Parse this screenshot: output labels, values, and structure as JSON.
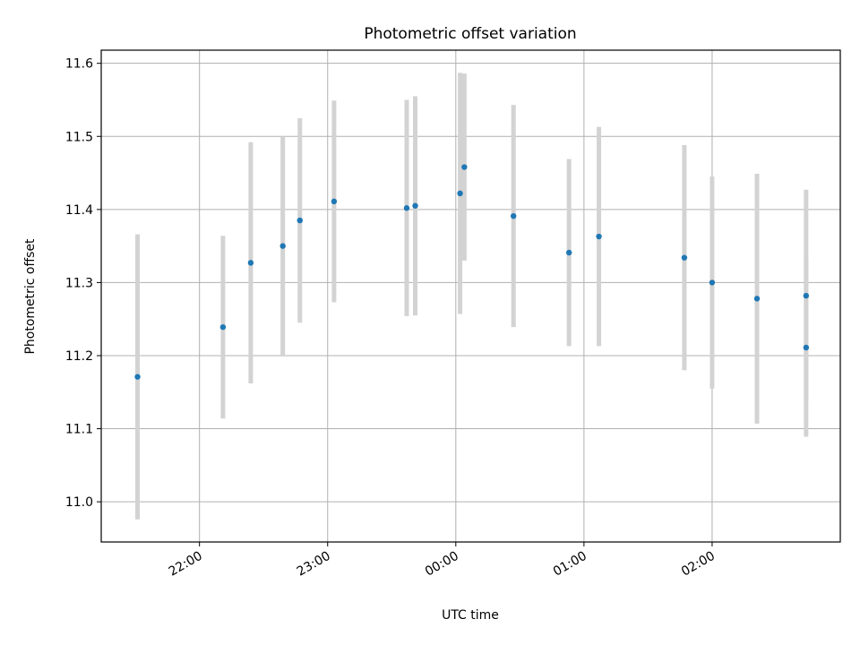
{
  "chart_data": {
    "type": "scatter",
    "title": "Photometric offset variation",
    "xlabel": "UTC time",
    "ylabel": "Photometric offset",
    "x_ticks": [
      "22:00",
      "23:00",
      "00:00",
      "01:00",
      "02:00"
    ],
    "y_ticks": [
      "11.0",
      "11.1",
      "11.2",
      "11.3",
      "11.4",
      "11.5",
      "11.6"
    ],
    "xlim": [
      "21:14",
      "03:00"
    ],
    "ylim": [
      10.945,
      11.618
    ],
    "grid": true,
    "colors": {
      "marker": "#1f77b4",
      "errorbar": "#d3d3d3",
      "grid": "#b0b0b0"
    },
    "points": [
      {
        "time": "21:31",
        "y": 11.171,
        "yerr": 0.195
      },
      {
        "time": "22:11",
        "y": 11.239,
        "yerr": 0.125
      },
      {
        "time": "22:24",
        "y": 11.327,
        "yerr": 0.165
      },
      {
        "time": "22:39",
        "y": 11.35,
        "yerr": 0.15
      },
      {
        "time": "22:47",
        "y": 11.385,
        "yerr": 0.14
      },
      {
        "time": "23:03",
        "y": 11.411,
        "yerr": 0.138
      },
      {
        "time": "23:37",
        "y": 11.402,
        "yerr": 0.148
      },
      {
        "time": "23:41",
        "y": 11.405,
        "yerr": 0.15
      },
      {
        "time": "00:02",
        "y": 11.422,
        "yerr": 0.165
      },
      {
        "time": "00:04",
        "y": 11.458,
        "yerr": 0.128
      },
      {
        "time": "00:27",
        "y": 11.391,
        "yerr": 0.152
      },
      {
        "time": "00:53",
        "y": 11.341,
        "yerr": 0.128
      },
      {
        "time": "01:07",
        "y": 11.363,
        "yerr": 0.15
      },
      {
        "time": "01:47",
        "y": 11.334,
        "yerr": 0.154
      },
      {
        "time": "02:00",
        "y": 11.3,
        "yerr": 0.145
      },
      {
        "time": "02:21",
        "y": 11.278,
        "yerr": 0.171
      },
      {
        "time": "02:44",
        "y": 11.282,
        "yerr": 0.145
      },
      {
        "time": "02:44",
        "y": 11.211,
        "yerr": 0.122
      }
    ]
  }
}
